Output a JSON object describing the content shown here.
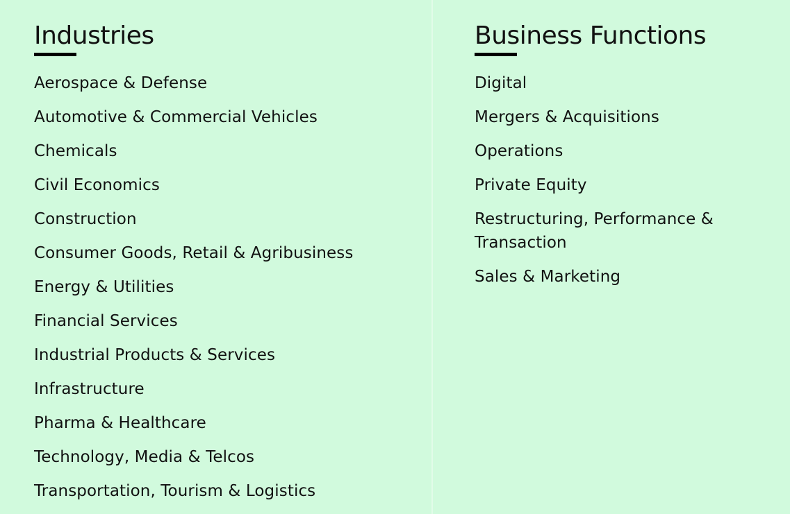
{
  "industries": {
    "title": "Industries",
    "items": [
      "Aerospace & Defense",
      "Automotive & Commercial Vehicles",
      "Chemicals",
      "Civil Economics",
      "Construction",
      "Consumer Goods, Retail & Agribusiness",
      "Energy & Utilities",
      "Financial Services",
      "Industrial Products & Services",
      "Infrastructure",
      "Pharma & Healthcare",
      "Technology, Media & Telcos",
      "Transportation, Tourism & Logistics"
    ]
  },
  "business_functions": {
    "title": "Business Functions",
    "items": [
      "Digital",
      "Mergers & Acquisitions",
      "Operations",
      "Private Equity",
      "Restructuring, Performance & Transaction",
      "Sales & Marketing"
    ]
  },
  "colors": {
    "background": "#d1fadd",
    "text": "#111111",
    "accent_underline": "#000000"
  }
}
